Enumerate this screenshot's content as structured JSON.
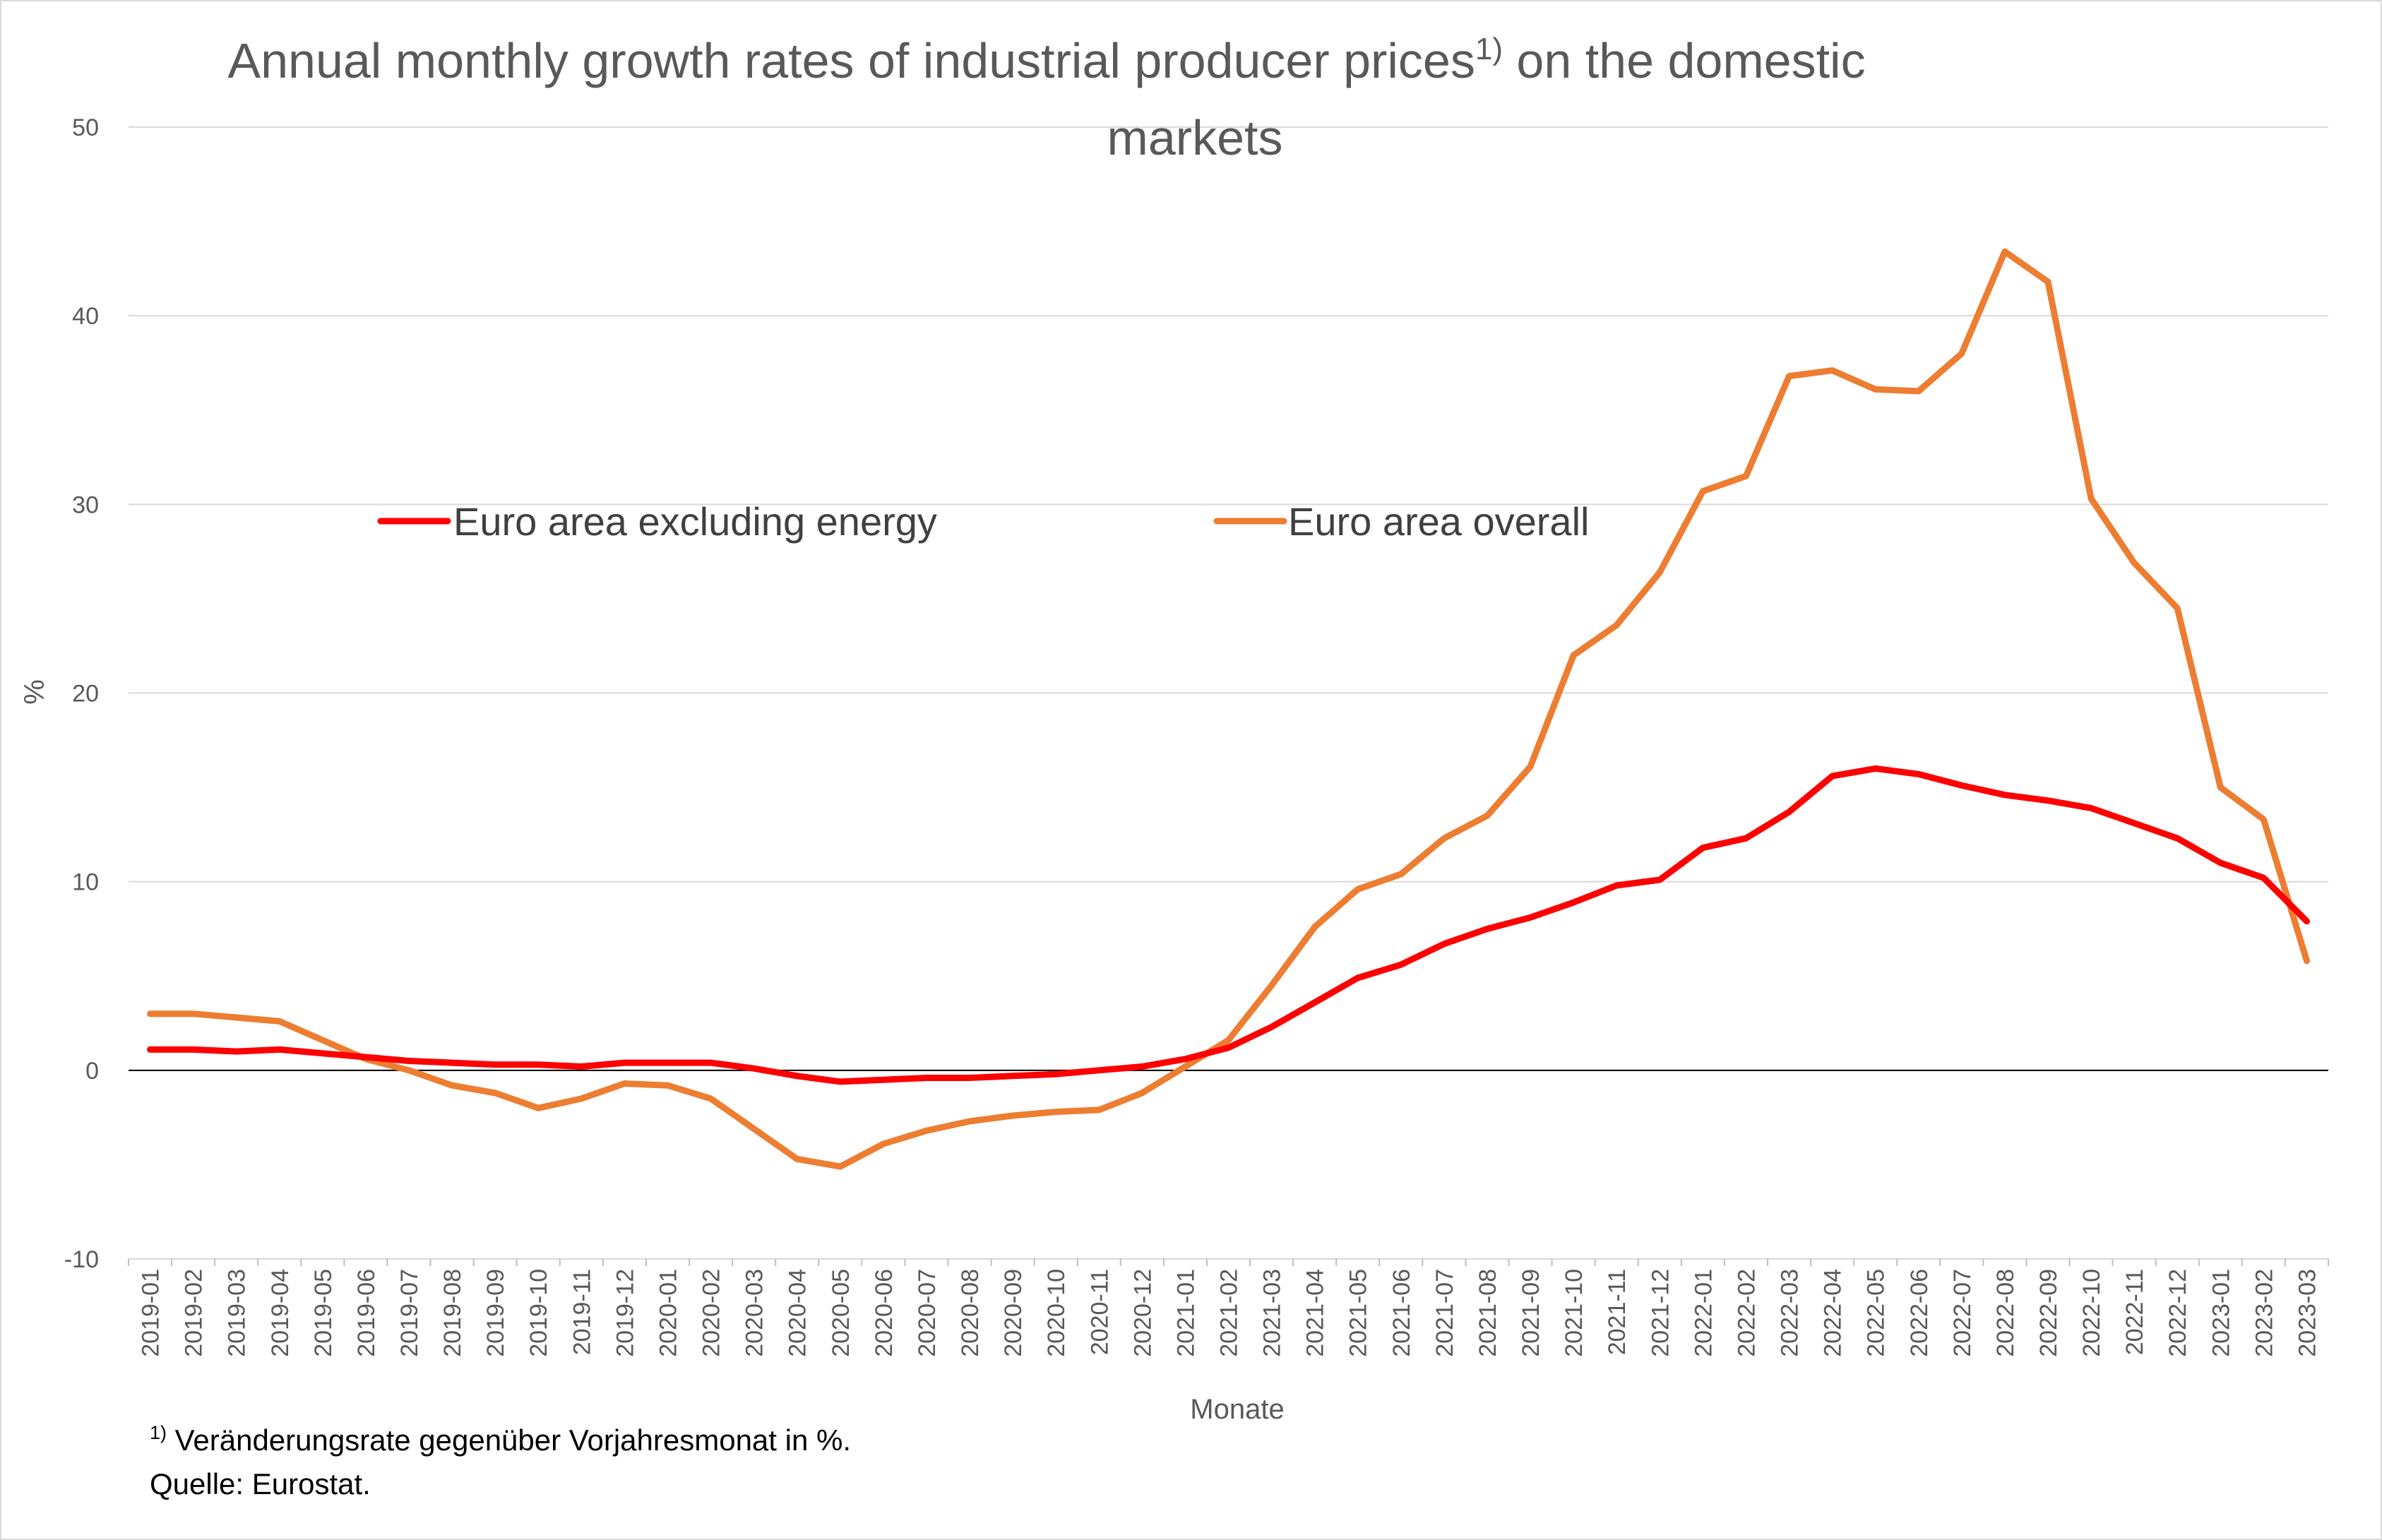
{
  "chart_data": {
    "type": "line",
    "title": {
      "part1": "Annual monthly growth rates of industrial producer prices",
      "superscript": "1)",
      "part2": " on the domestic",
      "line2": "markets"
    },
    "xlabel": "Monate",
    "ylabel": "%",
    "ylim": [
      -10,
      50
    ],
    "yticks": [
      -10,
      0,
      10,
      20,
      30,
      40,
      50
    ],
    "grid": true,
    "legend_position": "top-left inside plot",
    "categories": [
      "2019-01",
      "2019-02",
      "2019-03",
      "2019-04",
      "2019-05",
      "2019-06",
      "2019-07",
      "2019-08",
      "2019-09",
      "2019-10",
      "2019-11",
      "2019-12",
      "2020-01",
      "2020-02",
      "2020-03",
      "2020-04",
      "2020-05",
      "2020-06",
      "2020-07",
      "2020-08",
      "2020-09",
      "2020-10",
      "2020-11",
      "2020-12",
      "2021-01",
      "2021-02",
      "2021-03",
      "2021-04",
      "2021-05",
      "2021-06",
      "2021-07",
      "2021-08",
      "2021-09",
      "2021-10",
      "2021-11",
      "2021-12",
      "2022-01",
      "2022-02",
      "2022-03",
      "2022-04",
      "2022-05",
      "2022-06",
      "2022-07",
      "2022-08",
      "2022-09",
      "2022-10",
      "2022-11",
      "2022-12",
      "2023-01",
      "2023-02",
      "2023-03"
    ],
    "series": [
      {
        "name": "Euro area excluding energy",
        "color": "#ff0000",
        "values": [
          1.1,
          1.1,
          1.0,
          1.1,
          0.9,
          0.7,
          0.5,
          0.4,
          0.3,
          0.3,
          0.2,
          0.4,
          0.4,
          0.4,
          0.1,
          -0.3,
          -0.6,
          -0.5,
          -0.4,
          -0.4,
          -0.3,
          -0.2,
          0.0,
          0.2,
          0.6,
          1.2,
          2.3,
          3.6,
          4.9,
          5.6,
          6.7,
          7.5,
          8.1,
          8.9,
          9.8,
          10.1,
          11.8,
          12.3,
          13.7,
          15.6,
          16.0,
          15.7,
          15.1,
          14.6,
          14.3,
          13.9,
          13.1,
          12.3,
          11.0,
          10.2,
          7.9
        ]
      },
      {
        "name": "Euro area overall",
        "color": "#ed7d31",
        "values": [
          3.0,
          3.0,
          2.8,
          2.6,
          1.6,
          0.6,
          0.0,
          -0.8,
          -1.2,
          -2.0,
          -1.5,
          -0.7,
          -0.8,
          -1.5,
          -3.1,
          -4.7,
          -5.1,
          -3.9,
          -3.2,
          -2.7,
          -2.4,
          -2.2,
          -2.1,
          -1.2,
          0.2,
          1.6,
          4.5,
          7.6,
          9.6,
          10.4,
          12.3,
          13.5,
          16.1,
          22.0,
          23.6,
          26.4,
          30.7,
          31.5,
          36.8,
          37.1,
          36.1,
          36.0,
          38.0,
          43.4,
          41.8,
          30.3,
          26.9,
          24.5,
          15.0,
          13.3,
          5.8
        ]
      }
    ],
    "footnotes": {
      "note_marker": "1)",
      "note_text": " Veränderungsrate gegenüber Vorjahresmonat in %.",
      "source": "Quelle: Eurostat."
    }
  }
}
